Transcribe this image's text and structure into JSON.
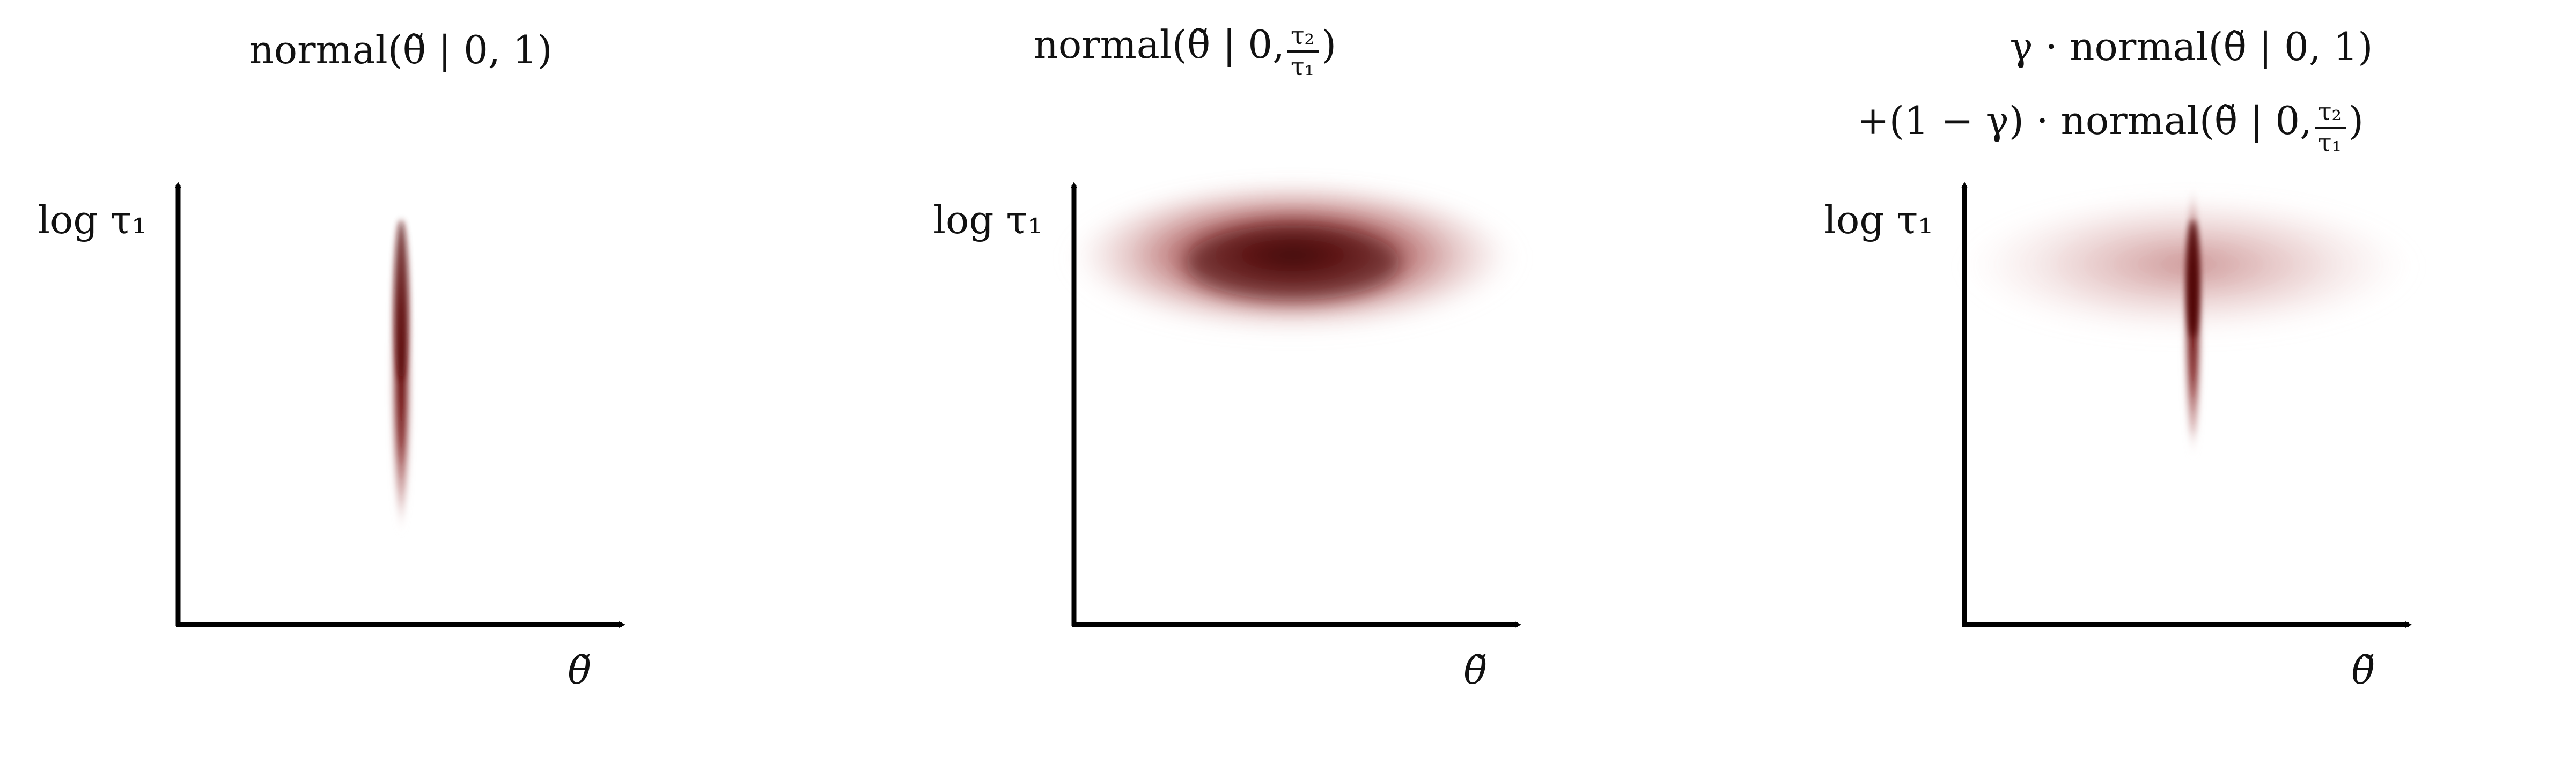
{
  "panels": [
    {
      "id": "left",
      "title_lines": [
        {
          "text": "normal(θ̃ | 0, 1)"
        }
      ],
      "y_axis_label": "log τ₁",
      "x_axis_label": "θ̃",
      "density": "narrow-vertical"
    },
    {
      "id": "middle",
      "title_lines": [
        {
          "text": "normal(θ̃ | 0, ",
          "frac_num": "τ₂",
          "frac_den": "τ₁",
          "suffix": ")"
        }
      ],
      "y_axis_label": "log τ₁",
      "x_axis_label": "θ̃",
      "density": "wide-horizontal"
    },
    {
      "id": "right",
      "title_lines": [
        {
          "text": "γ · normal(θ̃ | 0, 1)"
        },
        {
          "text": "+(1 − γ) · normal(θ̃ | 0, ",
          "frac_num": "τ₂",
          "frac_den": "τ₁",
          "suffix": ")"
        }
      ],
      "y_axis_label": "log τ₁",
      "x_axis_label": "θ̃",
      "density": "mixture"
    }
  ],
  "colors": {
    "density_dark": "#5a0a0a",
    "density_mid": "#8b1a1a",
    "axis": "#000000",
    "background": "#ffffff"
  }
}
